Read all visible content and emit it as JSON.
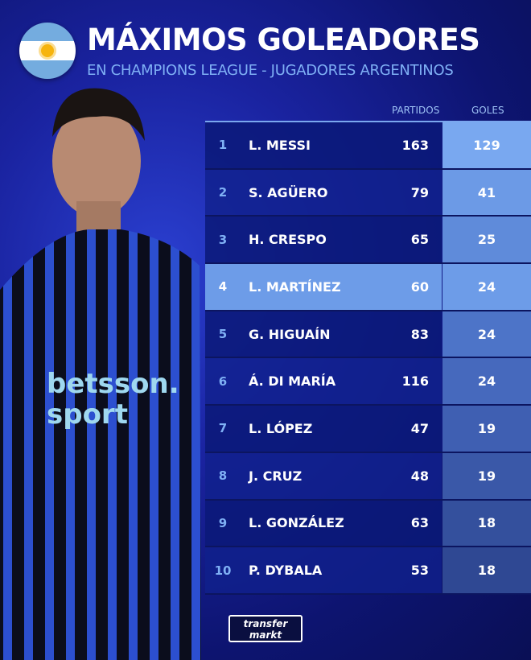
{
  "header": {
    "title": "MÁXIMOS GOLEADORES",
    "subtitle": "EN CHAMPIONS LEAGUE - JUGADORES ARGENTINOS",
    "flag": "argentina-flag"
  },
  "table": {
    "columns": {
      "matches": "PARTIDOS",
      "goals": "GOLES"
    },
    "highlight_rank": 4,
    "rows": [
      {
        "rank": "1",
        "name": "L. MESSI",
        "matches": "163",
        "goals": "129"
      },
      {
        "rank": "2",
        "name": "S. AGÜERO",
        "matches": "79",
        "goals": "41"
      },
      {
        "rank": "3",
        "name": "H. CRESPO",
        "matches": "65",
        "goals": "25"
      },
      {
        "rank": "4",
        "name": "L. MARTÍNEZ",
        "matches": "60",
        "goals": "24"
      },
      {
        "rank": "5",
        "name": "G. HIGUAÍN",
        "matches": "83",
        "goals": "24"
      },
      {
        "rank": "6",
        "name": "Á. DI MARÍA",
        "matches": "116",
        "goals": "24"
      },
      {
        "rank": "7",
        "name": "L. LÓPEZ",
        "matches": "47",
        "goals": "19"
      },
      {
        "rank": "8",
        "name": "J. CRUZ",
        "matches": "48",
        "goals": "19"
      },
      {
        "rank": "9",
        "name": "L. GONZÁLEZ",
        "matches": "63",
        "goals": "18"
      },
      {
        "rank": "10",
        "name": "P. DYBALA",
        "matches": "53",
        "goals": "18"
      }
    ]
  },
  "player_photo": {
    "shirt_sponsor": "betsson.sport"
  },
  "logo": {
    "line1": "transfer",
    "line2": "markt"
  },
  "colors": {
    "highlight": "#6d9ce8",
    "accent": "#7fb0f5"
  }
}
